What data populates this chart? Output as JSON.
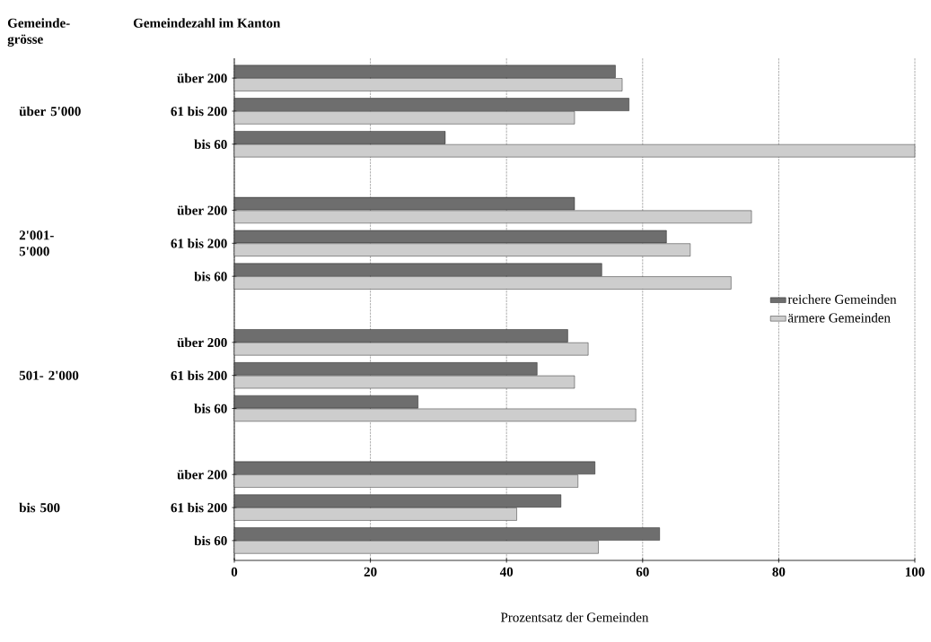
{
  "chart_data": {
    "type": "bar",
    "orientation": "horizontal",
    "xlabel": "Prozentsatz der Gemeinden",
    "categories": [
      "über 200",
      "61 bis 200",
      "bis 60",
      null,
      "über 200",
      "61 bis 200",
      "bis 60",
      null,
      "über 200",
      "61 bis 200",
      "bis 60",
      null,
      "über 200",
      "61 bis 200",
      "bis 60"
    ],
    "series": [
      {
        "name": "reichere Gemeinden",
        "color": "#6e6e6e",
        "values": [
          56,
          58,
          31,
          null,
          50,
          63.5,
          54,
          null,
          49,
          44.5,
          27,
          null,
          53,
          48,
          62.5
        ]
      },
      {
        "name": "ärmere Gemeinden",
        "color": "#cdcdcd",
        "values": [
          57,
          50,
          100,
          null,
          76,
          67,
          73,
          null,
          52,
          50,
          59,
          null,
          50.5,
          41.5,
          53.5
        ]
      }
    ],
    "xlim": [
      0,
      100
    ],
    "xticks": [
      0,
      20,
      40,
      60,
      80,
      100
    ],
    "grid": "x",
    "legend": "right",
    "annotations": [
      "Gemeinde- grösse",
      "Gemeindezahl im Kanton",
      "über 5'000",
      "2'001- 5'000",
      "501- 2'000",
      "bis 500"
    ]
  }
}
